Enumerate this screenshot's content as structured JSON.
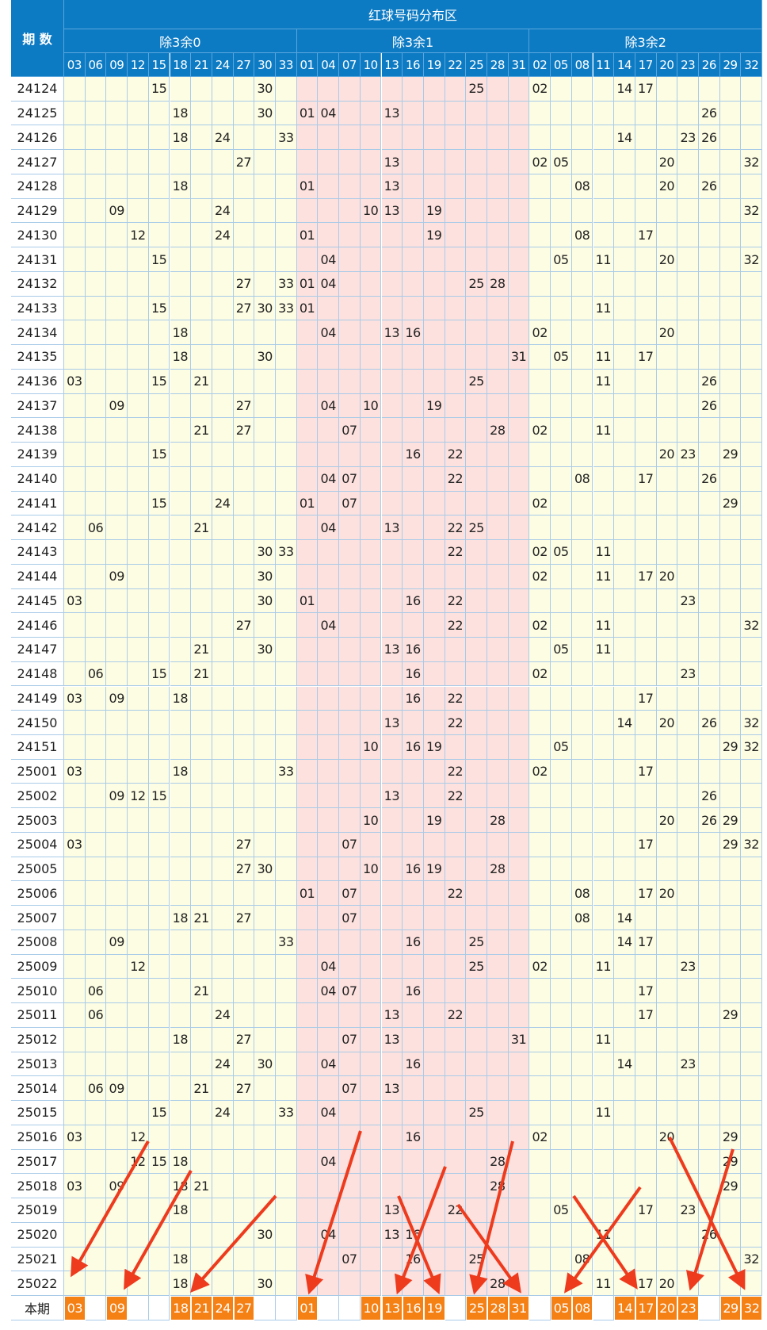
{
  "header": {
    "title": "红球号码分布区",
    "issue_label": "期 数",
    "groups": [
      {
        "label": "除3余0",
        "numbers": [
          "03",
          "06",
          "09",
          "12",
          "15",
          "18",
          "21",
          "24",
          "27",
          "30",
          "33"
        ]
      },
      {
        "label": "除3余1",
        "numbers": [
          "01",
          "04",
          "07",
          "10",
          "13",
          "16",
          "19",
          "22",
          "25",
          "28",
          "31"
        ]
      },
      {
        "label": "除3余2",
        "numbers": [
          "02",
          "05",
          "08",
          "11",
          "14",
          "17",
          "20",
          "23",
          "26",
          "29",
          "32"
        ]
      }
    ]
  },
  "rows": [
    {
      "issue": "24124",
      "numbers": [
        "15",
        "30",
        "25",
        "02",
        "14",
        "17"
      ]
    },
    {
      "issue": "24125",
      "numbers": [
        "18",
        "30",
        "01",
        "04",
        "13",
        "26"
      ]
    },
    {
      "issue": "24126",
      "numbers": [
        "18",
        "24",
        "33",
        "14",
        "23",
        "26"
      ]
    },
    {
      "issue": "24127",
      "numbers": [
        "27",
        "13",
        "02",
        "05",
        "20",
        "32"
      ]
    },
    {
      "issue": "24128",
      "numbers": [
        "18",
        "01",
        "13",
        "08",
        "20",
        "26"
      ]
    },
    {
      "issue": "24129",
      "numbers": [
        "09",
        "24",
        "10",
        "13",
        "19",
        "32"
      ]
    },
    {
      "issue": "24130",
      "numbers": [
        "12",
        "24",
        "01",
        "19",
        "08",
        "17"
      ]
    },
    {
      "issue": "24131",
      "numbers": [
        "15",
        "04",
        "05",
        "11",
        "20",
        "32"
      ]
    },
    {
      "issue": "24132",
      "numbers": [
        "27",
        "33",
        "01",
        "04",
        "25",
        "28"
      ]
    },
    {
      "issue": "24133",
      "numbers": [
        "15",
        "27",
        "30",
        "33",
        "01",
        "11"
      ]
    },
    {
      "issue": "24134",
      "numbers": [
        "18",
        "04",
        "13",
        "16",
        "02",
        "20"
      ]
    },
    {
      "issue": "24135",
      "numbers": [
        "18",
        "30",
        "31",
        "05",
        "11",
        "17"
      ]
    },
    {
      "issue": "24136",
      "numbers": [
        "03",
        "15",
        "21",
        "25",
        "11",
        "26"
      ]
    },
    {
      "issue": "24137",
      "numbers": [
        "09",
        "27",
        "04",
        "10",
        "19",
        "26"
      ]
    },
    {
      "issue": "24138",
      "numbers": [
        "21",
        "27",
        "07",
        "28",
        "02",
        "11"
      ]
    },
    {
      "issue": "24139",
      "numbers": [
        "15",
        "16",
        "22",
        "20",
        "23",
        "29"
      ]
    },
    {
      "issue": "24140",
      "numbers": [
        "04",
        "07",
        "22",
        "08",
        "17",
        "26"
      ]
    },
    {
      "issue": "24141",
      "numbers": [
        "15",
        "24",
        "01",
        "07",
        "02",
        "29"
      ]
    },
    {
      "issue": "24142",
      "numbers": [
        "06",
        "21",
        "04",
        "13",
        "22",
        "25"
      ]
    },
    {
      "issue": "24143",
      "numbers": [
        "30",
        "33",
        "22",
        "02",
        "05",
        "11"
      ]
    },
    {
      "issue": "24144",
      "numbers": [
        "09",
        "30",
        "02",
        "11",
        "17",
        "20"
      ]
    },
    {
      "issue": "24145",
      "numbers": [
        "03",
        "30",
        "01",
        "16",
        "22",
        "23"
      ]
    },
    {
      "issue": "24146",
      "numbers": [
        "27",
        "04",
        "22",
        "02",
        "11",
        "32"
      ]
    },
    {
      "issue": "24147",
      "numbers": [
        "21",
        "30",
        "13",
        "16",
        "05",
        "11"
      ]
    },
    {
      "issue": "24148",
      "numbers": [
        "06",
        "15",
        "21",
        "16",
        "02",
        "23"
      ]
    },
    {
      "issue": "24149",
      "numbers": [
        "03",
        "09",
        "18",
        "16",
        "22",
        "17"
      ]
    },
    {
      "issue": "24150",
      "numbers": [
        "13",
        "22",
        "14",
        "20",
        "26",
        "32"
      ]
    },
    {
      "issue": "24151",
      "numbers": [
        "10",
        "16",
        "19",
        "05",
        "29",
        "32"
      ]
    },
    {
      "issue": "25001",
      "numbers": [
        "03",
        "18",
        "33",
        "22",
        "02",
        "17"
      ]
    },
    {
      "issue": "25002",
      "numbers": [
        "09",
        "12",
        "15",
        "13",
        "22",
        "26"
      ]
    },
    {
      "issue": "25003",
      "numbers": [
        "10",
        "19",
        "28",
        "20",
        "26",
        "29"
      ]
    },
    {
      "issue": "25004",
      "numbers": [
        "03",
        "27",
        "07",
        "17",
        "29",
        "32"
      ]
    },
    {
      "issue": "25005",
      "numbers": [
        "27",
        "30",
        "10",
        "16",
        "19",
        "28"
      ]
    },
    {
      "issue": "25006",
      "numbers": [
        "01",
        "07",
        "22",
        "08",
        "17",
        "20"
      ]
    },
    {
      "issue": "25007",
      "numbers": [
        "18",
        "21",
        "27",
        "07",
        "08",
        "14"
      ]
    },
    {
      "issue": "25008",
      "numbers": [
        "09",
        "33",
        "16",
        "25",
        "14",
        "17"
      ]
    },
    {
      "issue": "25009",
      "numbers": [
        "12",
        "04",
        "25",
        "02",
        "11",
        "23"
      ]
    },
    {
      "issue": "25010",
      "numbers": [
        "06",
        "21",
        "04",
        "07",
        "16",
        "17"
      ]
    },
    {
      "issue": "25011",
      "numbers": [
        "06",
        "24",
        "13",
        "22",
        "17",
        "29"
      ]
    },
    {
      "issue": "25012",
      "numbers": [
        "18",
        "27",
        "07",
        "13",
        "31",
        "11"
      ]
    },
    {
      "issue": "25013",
      "numbers": [
        "24",
        "30",
        "04",
        "16",
        "14",
        "23"
      ]
    },
    {
      "issue": "25014",
      "numbers": [
        "06",
        "09",
        "21",
        "27",
        "07",
        "13"
      ]
    },
    {
      "issue": "25015",
      "numbers": [
        "15",
        "24",
        "33",
        "04",
        "25",
        "11"
      ]
    },
    {
      "issue": "25016",
      "numbers": [
        "03",
        "12",
        "16",
        "02",
        "20",
        "29"
      ]
    },
    {
      "issue": "25017",
      "numbers": [
        "12",
        "15",
        "18",
        "04",
        "28",
        "29"
      ]
    },
    {
      "issue": "25018",
      "numbers": [
        "03",
        "09",
        "18",
        "21",
        "28",
        "29"
      ]
    },
    {
      "issue": "25019",
      "numbers": [
        "18",
        "13",
        "22",
        "05",
        "17",
        "23"
      ]
    },
    {
      "issue": "25020",
      "numbers": [
        "30",
        "04",
        "13",
        "16",
        "11",
        "26"
      ]
    },
    {
      "issue": "25021",
      "numbers": [
        "18",
        "07",
        "16",
        "25",
        "08",
        "32"
      ]
    },
    {
      "issue": "25022",
      "numbers": [
        "18",
        "30",
        "28",
        "11",
        "17",
        "20"
      ]
    }
  ],
  "current": {
    "label": "本期",
    "numbers": [
      "03",
      "09",
      "18",
      "21",
      "24",
      "27",
      "01",
      "10",
      "13",
      "16",
      "19",
      "25",
      "28",
      "31",
      "05",
      "08",
      "14",
      "17",
      "20",
      "23",
      "29",
      "32"
    ]
  }
}
